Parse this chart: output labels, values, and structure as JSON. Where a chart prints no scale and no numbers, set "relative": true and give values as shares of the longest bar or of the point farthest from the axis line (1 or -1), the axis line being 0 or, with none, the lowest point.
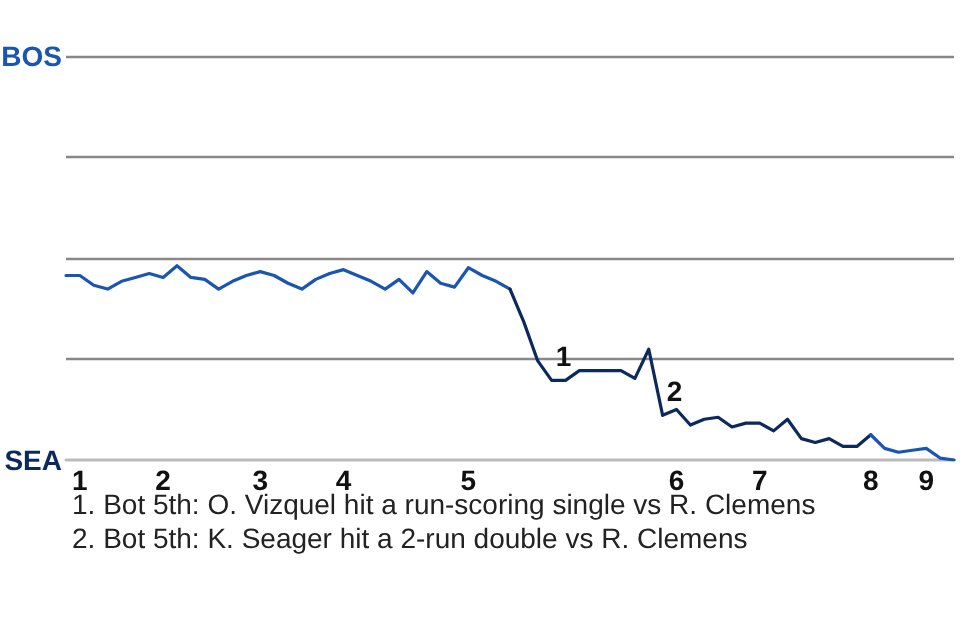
{
  "chart_data": {
    "type": "line",
    "relative": true,
    "categories": [
      null,
      "1",
      null,
      null,
      null,
      null,
      null,
      "2",
      null,
      null,
      null,
      null,
      null,
      null,
      "3",
      null,
      null,
      null,
      null,
      null,
      "4",
      null,
      null,
      null,
      null,
      null,
      null,
      null,
      null,
      "5",
      null,
      null,
      null,
      null,
      null,
      null,
      null,
      null,
      null,
      null,
      null,
      null,
      null,
      null,
      "6",
      null,
      null,
      null,
      null,
      null,
      "7",
      null,
      null,
      null,
      null,
      null,
      null,
      null,
      "8",
      null,
      null,
      null,
      "9",
      null,
      null
    ],
    "marker": "none",
    "line_style": "solid",
    "ref_lines": [
      {
        "axis": "y",
        "value": 0.52,
        "color": "#888888",
        "line_style": "solid"
      },
      {
        "axis": "y",
        "value": 1.04,
        "color": "#888888",
        "line_style": "solid"
      },
      {
        "axis": "y",
        "value": 1.56,
        "color": "#888888",
        "line_style": "solid"
      },
      {
        "axis": "y",
        "value": 2.08,
        "color": "#888888",
        "line_style": "solid"
      }
    ],
    "series": [
      {
        "color": "#1a56b0",
        "values": [
          0.95,
          0.95,
          0.9,
          0.88,
          0.92,
          0.94,
          0.96,
          0.94,
          1,
          0.94,
          0.93,
          0.88,
          0.92,
          0.95,
          0.97,
          0.95,
          0.91,
          0.88,
          0.93,
          0.96,
          0.98,
          0.95,
          0.92,
          0.88,
          0.93,
          0.86,
          0.97,
          0.91,
          0.89,
          0.99,
          0.95,
          0.92,
          0.88,
          null,
          null,
          null,
          null,
          null,
          null,
          null,
          null,
          null,
          null,
          null,
          null,
          null,
          null,
          null,
          null,
          null,
          null,
          null,
          null,
          null,
          null,
          null,
          null,
          null,
          null,
          null,
          null,
          null,
          null,
          null,
          null
        ]
      },
      {
        "color": "#0b2a5b",
        "values": [
          null,
          null,
          null,
          null,
          null,
          null,
          null,
          null,
          null,
          null,
          null,
          null,
          null,
          null,
          null,
          null,
          null,
          null,
          null,
          null,
          null,
          null,
          null,
          null,
          null,
          null,
          null,
          null,
          null,
          null,
          null,
          null,
          0.88,
          0.71,
          0.51,
          0.41,
          0.41,
          0.46,
          0.46,
          0.46,
          0.46,
          0.42,
          0.57,
          0.23,
          0.26,
          0.18,
          0.21,
          0.22,
          0.17,
          0.19,
          0.19,
          0.15,
          0.21,
          0.11,
          0.09,
          0.11,
          0.07,
          0.07,
          0.13,
          null,
          null,
          null,
          null,
          null,
          null
        ]
      },
      {
        "color": "#1a56b0",
        "values": [
          null,
          null,
          null,
          null,
          null,
          null,
          null,
          null,
          null,
          null,
          null,
          null,
          null,
          null,
          null,
          null,
          null,
          null,
          null,
          null,
          null,
          null,
          null,
          null,
          null,
          null,
          null,
          null,
          null,
          null,
          null,
          null,
          null,
          null,
          null,
          null,
          null,
          null,
          null,
          null,
          null,
          null,
          null,
          null,
          null,
          null,
          null,
          null,
          null,
          null,
          null,
          null,
          null,
          null,
          null,
          null,
          null,
          null,
          0.13,
          0.06,
          0.04,
          0.05,
          0.06,
          0.01,
          0
        ]
      }
    ],
    "annotations": [
      "BOS",
      "SEA",
      {
        "text": "1",
        "y": 0.41
      },
      {
        "text": "2",
        "y": 0.23
      },
      "1. Bot 5th: O. Vizquel hit a run-scoring single vs R. Clemens",
      "2. Bot 5th: K. Seager hit a 2-run double vs R. Clemens"
    ]
  }
}
